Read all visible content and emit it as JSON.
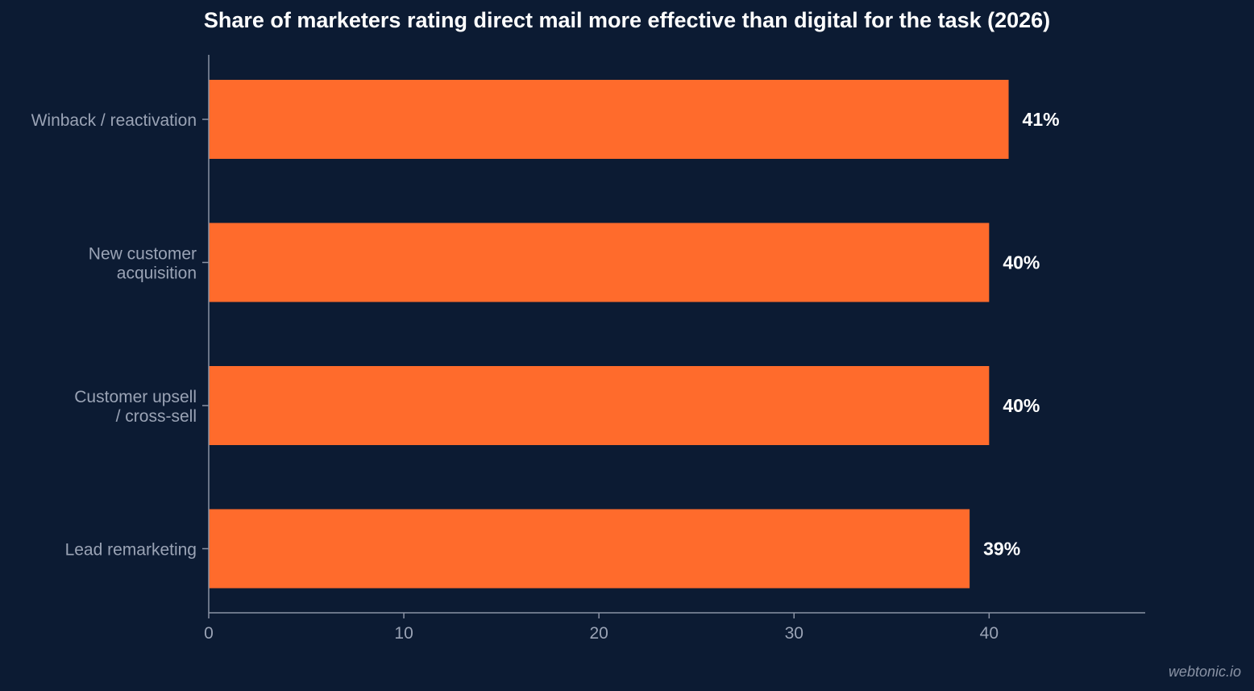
{
  "chart_data": {
    "type": "bar",
    "orientation": "horizontal",
    "title": "Share of marketers rating direct mail more effective than digital for the task (2026)",
    "categories": [
      [
        "Winback / reactivation"
      ],
      [
        "New customer",
        "acquisition"
      ],
      [
        "Customer upsell",
        "/ cross-sell"
      ],
      [
        "Lead remarketing"
      ]
    ],
    "values": [
      41,
      40,
      40,
      39
    ],
    "value_labels": [
      "41%",
      "40%",
      "40%",
      "39%"
    ],
    "xlabel": "",
    "ylabel": "",
    "xlim": [
      0,
      48
    ],
    "x_ticks": [
      0,
      10,
      20,
      30,
      40
    ],
    "x_tick_labels": [
      "0",
      "10",
      "20",
      "30",
      "40"
    ],
    "grid": false,
    "legend": "none",
    "colors": {
      "bar": "#ff6b2c",
      "background": "#0c1b33",
      "axis": "#8a93a5",
      "label": "#9aa3b5",
      "value_label": "#ffffff",
      "title": "#ffffff"
    }
  },
  "watermark": "webtonic.io"
}
